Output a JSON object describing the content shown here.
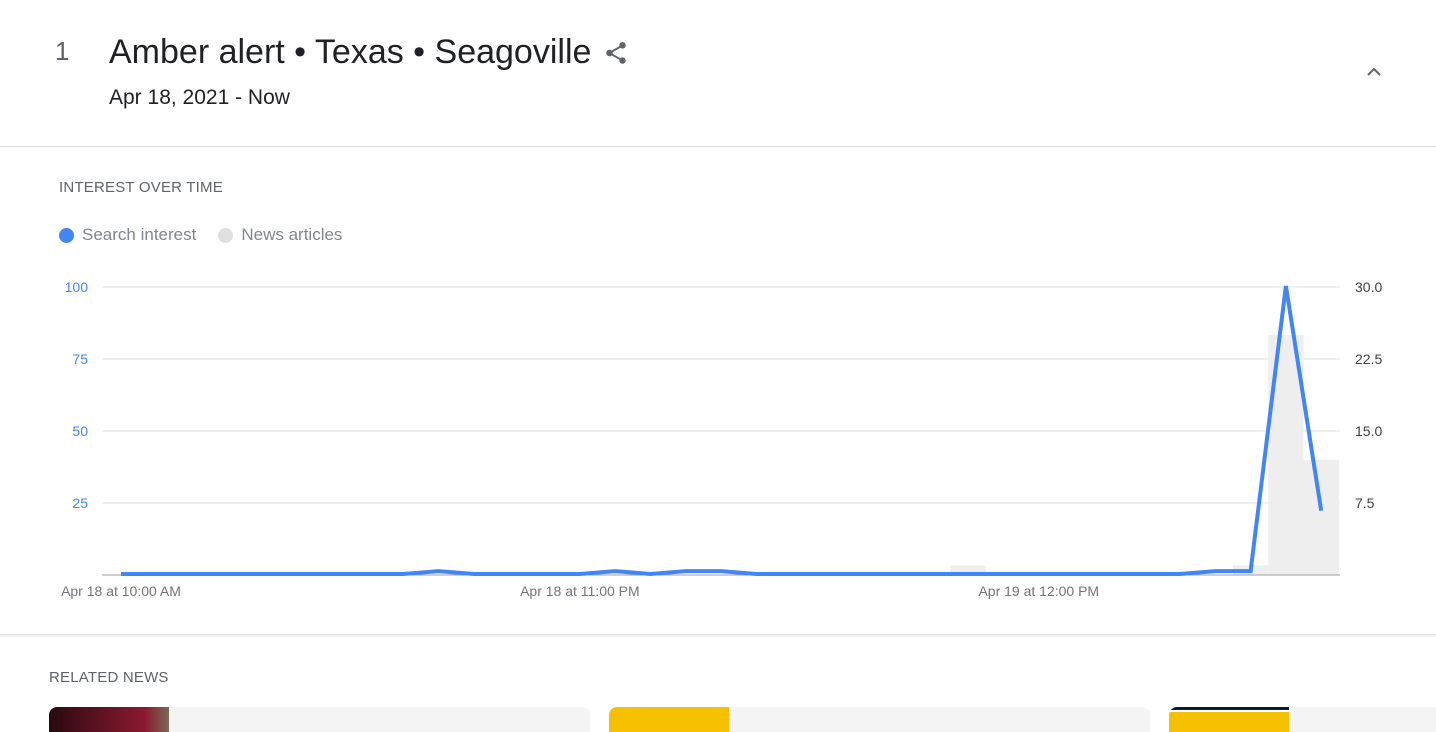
{
  "header": {
    "rank": "1",
    "title": "Amber alert • Texas • Seagoville",
    "date_range": "Apr 18, 2021 - Now"
  },
  "icons": {
    "share": "share-icon",
    "collapse": "chevron-up-icon"
  },
  "interest_section": {
    "label": "INTEREST OVER TIME"
  },
  "related_news": {
    "label": "RELATED NEWS",
    "cards": [
      {
        "thumb_color": "#6b1a2a"
      },
      {
        "thumb_color": "#f5c000"
      },
      {
        "thumb_color": "#f5c000"
      }
    ]
  },
  "chart_data": {
    "type": "line",
    "legend_placement": "top-left",
    "grid": true,
    "series": [
      {
        "name": "Search interest",
        "color": "#4285f4",
        "axis": "left",
        "values": [
          0,
          0,
          0,
          0,
          0,
          0,
          0,
          0,
          0,
          1,
          0,
          0,
          0,
          0,
          1,
          0,
          1,
          1,
          0,
          0,
          0,
          0,
          0,
          0,
          0,
          0,
          0,
          0,
          0,
          0,
          0,
          1,
          1,
          100,
          22
        ]
      },
      {
        "name": "News articles",
        "color": "#e0e0e0",
        "axis": "right",
        "type": "bar",
        "values": [
          0,
          0,
          0,
          0,
          0,
          0,
          0,
          0,
          0,
          0,
          0,
          0,
          0,
          0,
          0,
          0,
          0,
          0,
          0,
          0,
          0,
          0,
          0,
          0,
          1,
          0,
          0,
          0,
          0,
          0,
          0,
          0,
          1,
          25,
          12
        ]
      }
    ],
    "x_start": "Apr 18 at 10:00 AM",
    "x_step": "1 hour",
    "x_tick_labels": [
      {
        "label": "Apr 18 at 10:00 AM",
        "index": 0
      },
      {
        "label": "Apr 18 at 11:00 PM",
        "index": 13
      },
      {
        "label": "Apr 19 at 12:00 PM",
        "index": 26
      }
    ],
    "y_left": {
      "ylim": [
        0,
        100
      ],
      "ticks": [
        "25",
        "50",
        "75",
        "100"
      ],
      "color": "#4285f4"
    },
    "y_right": {
      "ylim": [
        0,
        30
      ],
      "ticks": [
        "7.5",
        "15.0",
        "22.5",
        "30.0"
      ]
    }
  }
}
